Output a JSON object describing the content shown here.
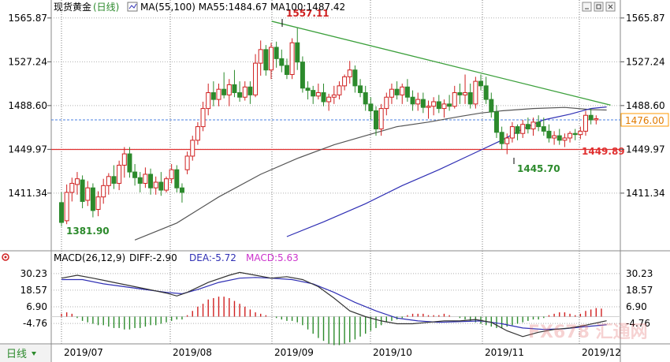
{
  "header": {
    "instrument": "现货黄金",
    "period_label": "(日线)",
    "ma_text": "MA(55,100) MA55:1484.67 MA100:1487.42"
  },
  "macd_header": {
    "params": "MACD(26,12,9)",
    "diff": "DIFF:-2.90",
    "dea": "DEA:-5.72",
    "macd": "MACD:5.63"
  },
  "footer": {
    "period_tab": "日线"
  },
  "watermark": "FX678 汇通网",
  "colors": {
    "up": "#d02020",
    "down": "#2c8a2c",
    "ma55": "#555555",
    "ma100": "#2f2fb4",
    "trendline": "#3ca03c",
    "support": "#e03030",
    "current_line": "#4a7fe0",
    "macd_diff": "#333333",
    "macd_dea": "#2f2fb4",
    "current_box": "#ff9900"
  },
  "chart_data": [
    {
      "type": "candlestick",
      "title": "现货黄金(日线)",
      "x_ticks": [
        "2019/07",
        "2019/08",
        "2019/09",
        "2019/10",
        "2019/11",
        "2019/12"
      ],
      "y_ticks": [
        "1565.87",
        "1527.24",
        "1488.60",
        "1449.97",
        "1411.34"
      ],
      "ylim": [
        1373.0,
        1572.0
      ],
      "grid": true,
      "annotations": {
        "high": "1557.11",
        "low": "1381.90",
        "recent_low": "1445.70",
        "support_level": "1449.89",
        "current_price": "1476.00"
      },
      "support_value": 1449.89,
      "current_value": 1476.0,
      "trendline": [
        [
          1,
          1563
        ],
        [
          104,
          1489
        ]
      ],
      "candles_ohlc": [
        [
          1403.0,
          1412.0,
          1381.9,
          1385.5
        ],
        [
          1387.0,
          1419.0,
          1384.0,
          1412.0
        ],
        [
          1412.0,
          1425.0,
          1404.0,
          1420.0
        ],
        [
          1419.0,
          1430.0,
          1410.0,
          1424.0
        ],
        [
          1423.0,
          1427.0,
          1398.0,
          1404.0
        ],
        [
          1405.0,
          1422.0,
          1400.0,
          1416.0
        ],
        [
          1416.0,
          1420.0,
          1390.0,
          1396.0
        ],
        [
          1397.0,
          1413.0,
          1391.0,
          1408.0
        ],
        [
          1408.0,
          1424.0,
          1402.0,
          1418.0
        ],
        [
          1418.0,
          1429.0,
          1410.0,
          1426.0
        ],
        [
          1426.0,
          1436.0,
          1415.0,
          1420.0
        ],
        [
          1420.0,
          1440.0,
          1414.0,
          1436.0
        ],
        [
          1436.0,
          1452.0,
          1425.0,
          1446.0
        ],
        [
          1446.0,
          1452.0,
          1425.0,
          1430.0
        ],
        [
          1430.0,
          1437.0,
          1418.0,
          1425.0
        ],
        [
          1425.0,
          1430.0,
          1412.0,
          1420.0
        ],
        [
          1420.0,
          1434.0,
          1416.0,
          1428.0
        ],
        [
          1428.0,
          1433.0,
          1410.0,
          1416.0
        ],
        [
          1416.0,
          1426.0,
          1410.0,
          1421.0
        ],
        [
          1421.0,
          1430.0,
          1409.0,
          1414.0
        ],
        [
          1414.0,
          1426.0,
          1412.0,
          1424.0
        ],
        [
          1424.0,
          1437.0,
          1420.0,
          1432.0
        ],
        [
          1432.0,
          1436.0,
          1412.0,
          1416.0
        ],
        [
          1416.0,
          1420.0,
          1403.0,
          1412.0
        ],
        [
          1432.0,
          1448.0,
          1428.0,
          1444.0
        ],
        [
          1444.0,
          1462.0,
          1440.0,
          1458.0
        ],
        [
          1458.0,
          1474.0,
          1454.0,
          1470.0
        ],
        [
          1470.0,
          1492.0,
          1466.0,
          1486.0
        ],
        [
          1486.0,
          1508.0,
          1480.0,
          1500.0
        ],
        [
          1500.0,
          1510.0,
          1488.0,
          1494.0
        ],
        [
          1494.0,
          1508.0,
          1488.0,
          1503.0
        ],
        [
          1503.0,
          1518.0,
          1495.0,
          1498.0
        ],
        [
          1498.0,
          1512.0,
          1488.0,
          1507.0
        ],
        [
          1507.0,
          1520.0,
          1496.0,
          1500.0
        ],
        [
          1500.0,
          1510.0,
          1492.0,
          1496.0
        ],
        [
          1496.0,
          1510.0,
          1493.0,
          1505.0
        ],
        [
          1505.0,
          1510.0,
          1490.0,
          1498.0
        ],
        [
          1498.0,
          1534.0,
          1496.0,
          1526.0
        ],
        [
          1526.0,
          1546.0,
          1515.0,
          1538.0
        ],
        [
          1538.0,
          1542.0,
          1515.0,
          1520.0
        ],
        [
          1520.0,
          1544.0,
          1512.0,
          1540.0
        ],
        [
          1540.0,
          1545.0,
          1522.0,
          1530.0
        ],
        [
          1530.0,
          1538.0,
          1518.0,
          1524.0
        ],
        [
          1524.0,
          1530.0,
          1512.0,
          1516.0
        ],
        [
          1516.0,
          1548.0,
          1512.0,
          1544.0
        ],
        [
          1544.0,
          1557.11,
          1520.0,
          1527.0
        ],
        [
          1527.0,
          1532.0,
          1500.0,
          1504.0
        ],
        [
          1504.0,
          1510.0,
          1494.0,
          1502.0
        ],
        [
          1502.0,
          1506.0,
          1490.0,
          1497.0
        ],
        [
          1497.0,
          1508.0,
          1494.0,
          1500.0
        ],
        [
          1500.0,
          1508.0,
          1488.0,
          1492.0
        ],
        [
          1492.0,
          1499.0,
          1484.0,
          1496.0
        ],
        [
          1496.0,
          1506.0,
          1490.0,
          1498.0
        ],
        [
          1498.0,
          1510.0,
          1494.0,
          1506.0
        ],
        [
          1506.0,
          1516.0,
          1502.0,
          1514.0
        ],
        [
          1514.0,
          1528.0,
          1508.0,
          1520.0
        ],
        [
          1520.0,
          1524.0,
          1500.0,
          1506.0
        ],
        [
          1506.0,
          1512.0,
          1496.0,
          1500.0
        ],
        [
          1500.0,
          1506.0,
          1484.0,
          1490.0
        ],
        [
          1490.0,
          1496.0,
          1476.0,
          1484.0
        ],
        [
          1484.0,
          1488.0,
          1462.0,
          1468.0
        ],
        [
          1468.0,
          1490.0,
          1462.0,
          1486.0
        ],
        [
          1486.0,
          1500.0,
          1480.0,
          1496.0
        ],
        [
          1496.0,
          1508.0,
          1490.0,
          1503.0
        ],
        [
          1503.0,
          1510.0,
          1494.0,
          1498.0
        ],
        [
          1498.0,
          1508.0,
          1490.0,
          1505.0
        ],
        [
          1505.0,
          1512.0,
          1492.0,
          1496.0
        ],
        [
          1496.0,
          1502.0,
          1484.0,
          1490.0
        ],
        [
          1490.0,
          1500.0,
          1484.0,
          1494.0
        ],
        [
          1494.0,
          1500.0,
          1482.0,
          1487.0
        ],
        [
          1487.0,
          1493.0,
          1477.0,
          1488.0
        ],
        [
          1488.0,
          1496.0,
          1480.0,
          1492.0
        ],
        [
          1492.0,
          1498.0,
          1482.0,
          1486.0
        ],
        [
          1486.0,
          1494.0,
          1478.0,
          1490.0
        ],
        [
          1490.0,
          1498.0,
          1484.0,
          1488.0
        ],
        [
          1488.0,
          1506.0,
          1486.0,
          1500.0
        ],
        [
          1500.0,
          1508.0,
          1490.0,
          1498.0
        ],
        [
          1498.0,
          1516.0,
          1490.0,
          1500.0
        ],
        [
          1500.0,
          1508.0,
          1486.0,
          1490.0
        ],
        [
          1490.0,
          1514.0,
          1486.0,
          1510.0
        ],
        [
          1510.0,
          1516.0,
          1502.0,
          1506.0
        ],
        [
          1506.0,
          1514.0,
          1490.0,
          1494.0
        ],
        [
          1494.0,
          1500.0,
          1478.0,
          1483.0
        ],
        [
          1483.0,
          1489.0,
          1460.0,
          1465.0
        ],
        [
          1465.0,
          1470.0,
          1450.0,
          1455.0
        ],
        [
          1455.0,
          1464.0,
          1445.7,
          1460.0
        ],
        [
          1460.0,
          1474.0,
          1456.0,
          1470.0
        ],
        [
          1470.0,
          1472.0,
          1458.0,
          1464.0
        ],
        [
          1464.0,
          1476.0,
          1460.0,
          1472.0
        ],
        [
          1472.0,
          1478.0,
          1464.0,
          1468.0
        ],
        [
          1468.0,
          1478.0,
          1462.0,
          1474.0
        ],
        [
          1474.0,
          1480.0,
          1466.0,
          1470.0
        ],
        [
          1470.0,
          1478.0,
          1462.0,
          1466.0
        ],
        [
          1466.0,
          1472.0,
          1456.0,
          1460.0
        ],
        [
          1460.0,
          1466.0,
          1454.0,
          1462.0
        ],
        [
          1462.0,
          1468.0,
          1454.0,
          1458.0
        ],
        [
          1458.0,
          1464.0,
          1452.0,
          1460.0
        ],
        [
          1460.0,
          1466.0,
          1456.0,
          1464.0
        ],
        [
          1464.0,
          1468.0,
          1458.0,
          1463.0
        ],
        [
          1463.0,
          1470.0,
          1459.0,
          1466.0
        ],
        [
          1466.0,
          1484.0,
          1462.0,
          1480.0
        ],
        [
          1480.0,
          1486.0,
          1472.0,
          1476.0
        ],
        [
          1476.0,
          1480.0,
          1472.0,
          1477.0
        ]
      ],
      "ma55": [
        [
          14,
          1370
        ],
        [
          22,
          1385
        ],
        [
          30,
          1408
        ],
        [
          38,
          1428
        ],
        [
          45,
          1442
        ],
        [
          52,
          1454
        ],
        [
          58,
          1462
        ],
        [
          64,
          1470
        ],
        [
          70,
          1474
        ],
        [
          76,
          1479
        ],
        [
          80,
          1482
        ],
        [
          84,
          1484
        ],
        [
          90,
          1486
        ],
        [
          96,
          1487
        ],
        [
          101,
          1485
        ],
        [
          104,
          1484.67
        ]
      ],
      "ma100": [
        [
          43,
          1373
        ],
        [
          50,
          1386
        ],
        [
          58,
          1402
        ],
        [
          65,
          1418
        ],
        [
          72,
          1432
        ],
        [
          78,
          1445
        ],
        [
          84,
          1458
        ],
        [
          88,
          1468
        ],
        [
          92,
          1476
        ],
        [
          97,
          1481
        ],
        [
          101,
          1486
        ],
        [
          104,
          1487.42
        ]
      ]
    },
    {
      "type": "macd",
      "title": "MACD(26,12,9)",
      "y_ticks": [
        "30.23",
        "18.57",
        "6.90",
        "-4.76"
      ],
      "ylim": [
        -18.0,
        34.0
      ],
      "diff_last": -2.9,
      "dea_last": -5.72,
      "macd_last": 5.63,
      "diff": [
        [
          0,
          27
        ],
        [
          3,
          29
        ],
        [
          6,
          27
        ],
        [
          10,
          24
        ],
        [
          14,
          21
        ],
        [
          18,
          18
        ],
        [
          20,
          16.5
        ],
        [
          22,
          14.5
        ],
        [
          24,
          17
        ],
        [
          28,
          24
        ],
        [
          32,
          29
        ],
        [
          34,
          31
        ],
        [
          37,
          29
        ],
        [
          40,
          27
        ],
        [
          43,
          28
        ],
        [
          46,
          26
        ],
        [
          49,
          21
        ],
        [
          52,
          13
        ],
        [
          55,
          4
        ],
        [
          58,
          0
        ],
        [
          61,
          -3
        ],
        [
          64,
          -5
        ],
        [
          67,
          -5
        ],
        [
          70,
          -4
        ],
        [
          73,
          -3
        ],
        [
          76,
          -3
        ],
        [
          79,
          -2
        ],
        [
          82,
          -4
        ],
        [
          85,
          -10
        ],
        [
          88,
          -14
        ],
        [
          91,
          -11
        ],
        [
          94,
          -9
        ],
        [
          97,
          -8
        ],
        [
          100,
          -6
        ],
        [
          104,
          -2.9
        ]
      ],
      "dea": [
        [
          0,
          26
        ],
        [
          4,
          26
        ],
        [
          8,
          23
        ],
        [
          12,
          21
        ],
        [
          16,
          19
        ],
        [
          20,
          17
        ],
        [
          23,
          16
        ],
        [
          26,
          19
        ],
        [
          30,
          24
        ],
        [
          34,
          27
        ],
        [
          37,
          27.5
        ],
        [
          40,
          27
        ],
        [
          44,
          26
        ],
        [
          48,
          23
        ],
        [
          52,
          17
        ],
        [
          56,
          10
        ],
        [
          60,
          4
        ],
        [
          64,
          -1
        ],
        [
          68,
          -3
        ],
        [
          72,
          -4
        ],
        [
          76,
          -3.5
        ],
        [
          80,
          -3
        ],
        [
          84,
          -5
        ],
        [
          88,
          -8
        ],
        [
          92,
          -9
        ],
        [
          96,
          -8.5
        ],
        [
          100,
          -7
        ],
        [
          104,
          -5.72
        ]
      ],
      "histogram": [
        2,
        3,
        2,
        -1,
        -3,
        -4,
        -5,
        -6,
        -6,
        -7,
        -8,
        -8,
        -9,
        -9,
        -8,
        -8,
        -7,
        -6,
        -6,
        -5,
        -4,
        -3,
        -2,
        -2,
        1,
        4,
        7,
        9,
        12,
        13,
        14,
        14,
        13,
        11,
        9,
        7,
        5,
        3,
        2,
        1,
        0,
        -1,
        -2,
        -3,
        -3,
        -4,
        -6,
        -9,
        -12,
        -15,
        -17,
        -19,
        -20,
        -20,
        -19,
        -18,
        -16,
        -14,
        -12,
        -10,
        -8,
        -6,
        -4,
        -3,
        -2,
        -1,
        1,
        2,
        2,
        2,
        1,
        1,
        1,
        2,
        1,
        0,
        -1,
        -2,
        -3,
        -4,
        -5,
        -6,
        -7,
        -8,
        -8,
        -7,
        -6,
        -5,
        -4,
        -3,
        -2,
        -2,
        -1,
        1,
        2,
        3,
        3,
        2,
        1,
        2,
        4,
        5,
        6,
        5.63
      ]
    }
  ]
}
